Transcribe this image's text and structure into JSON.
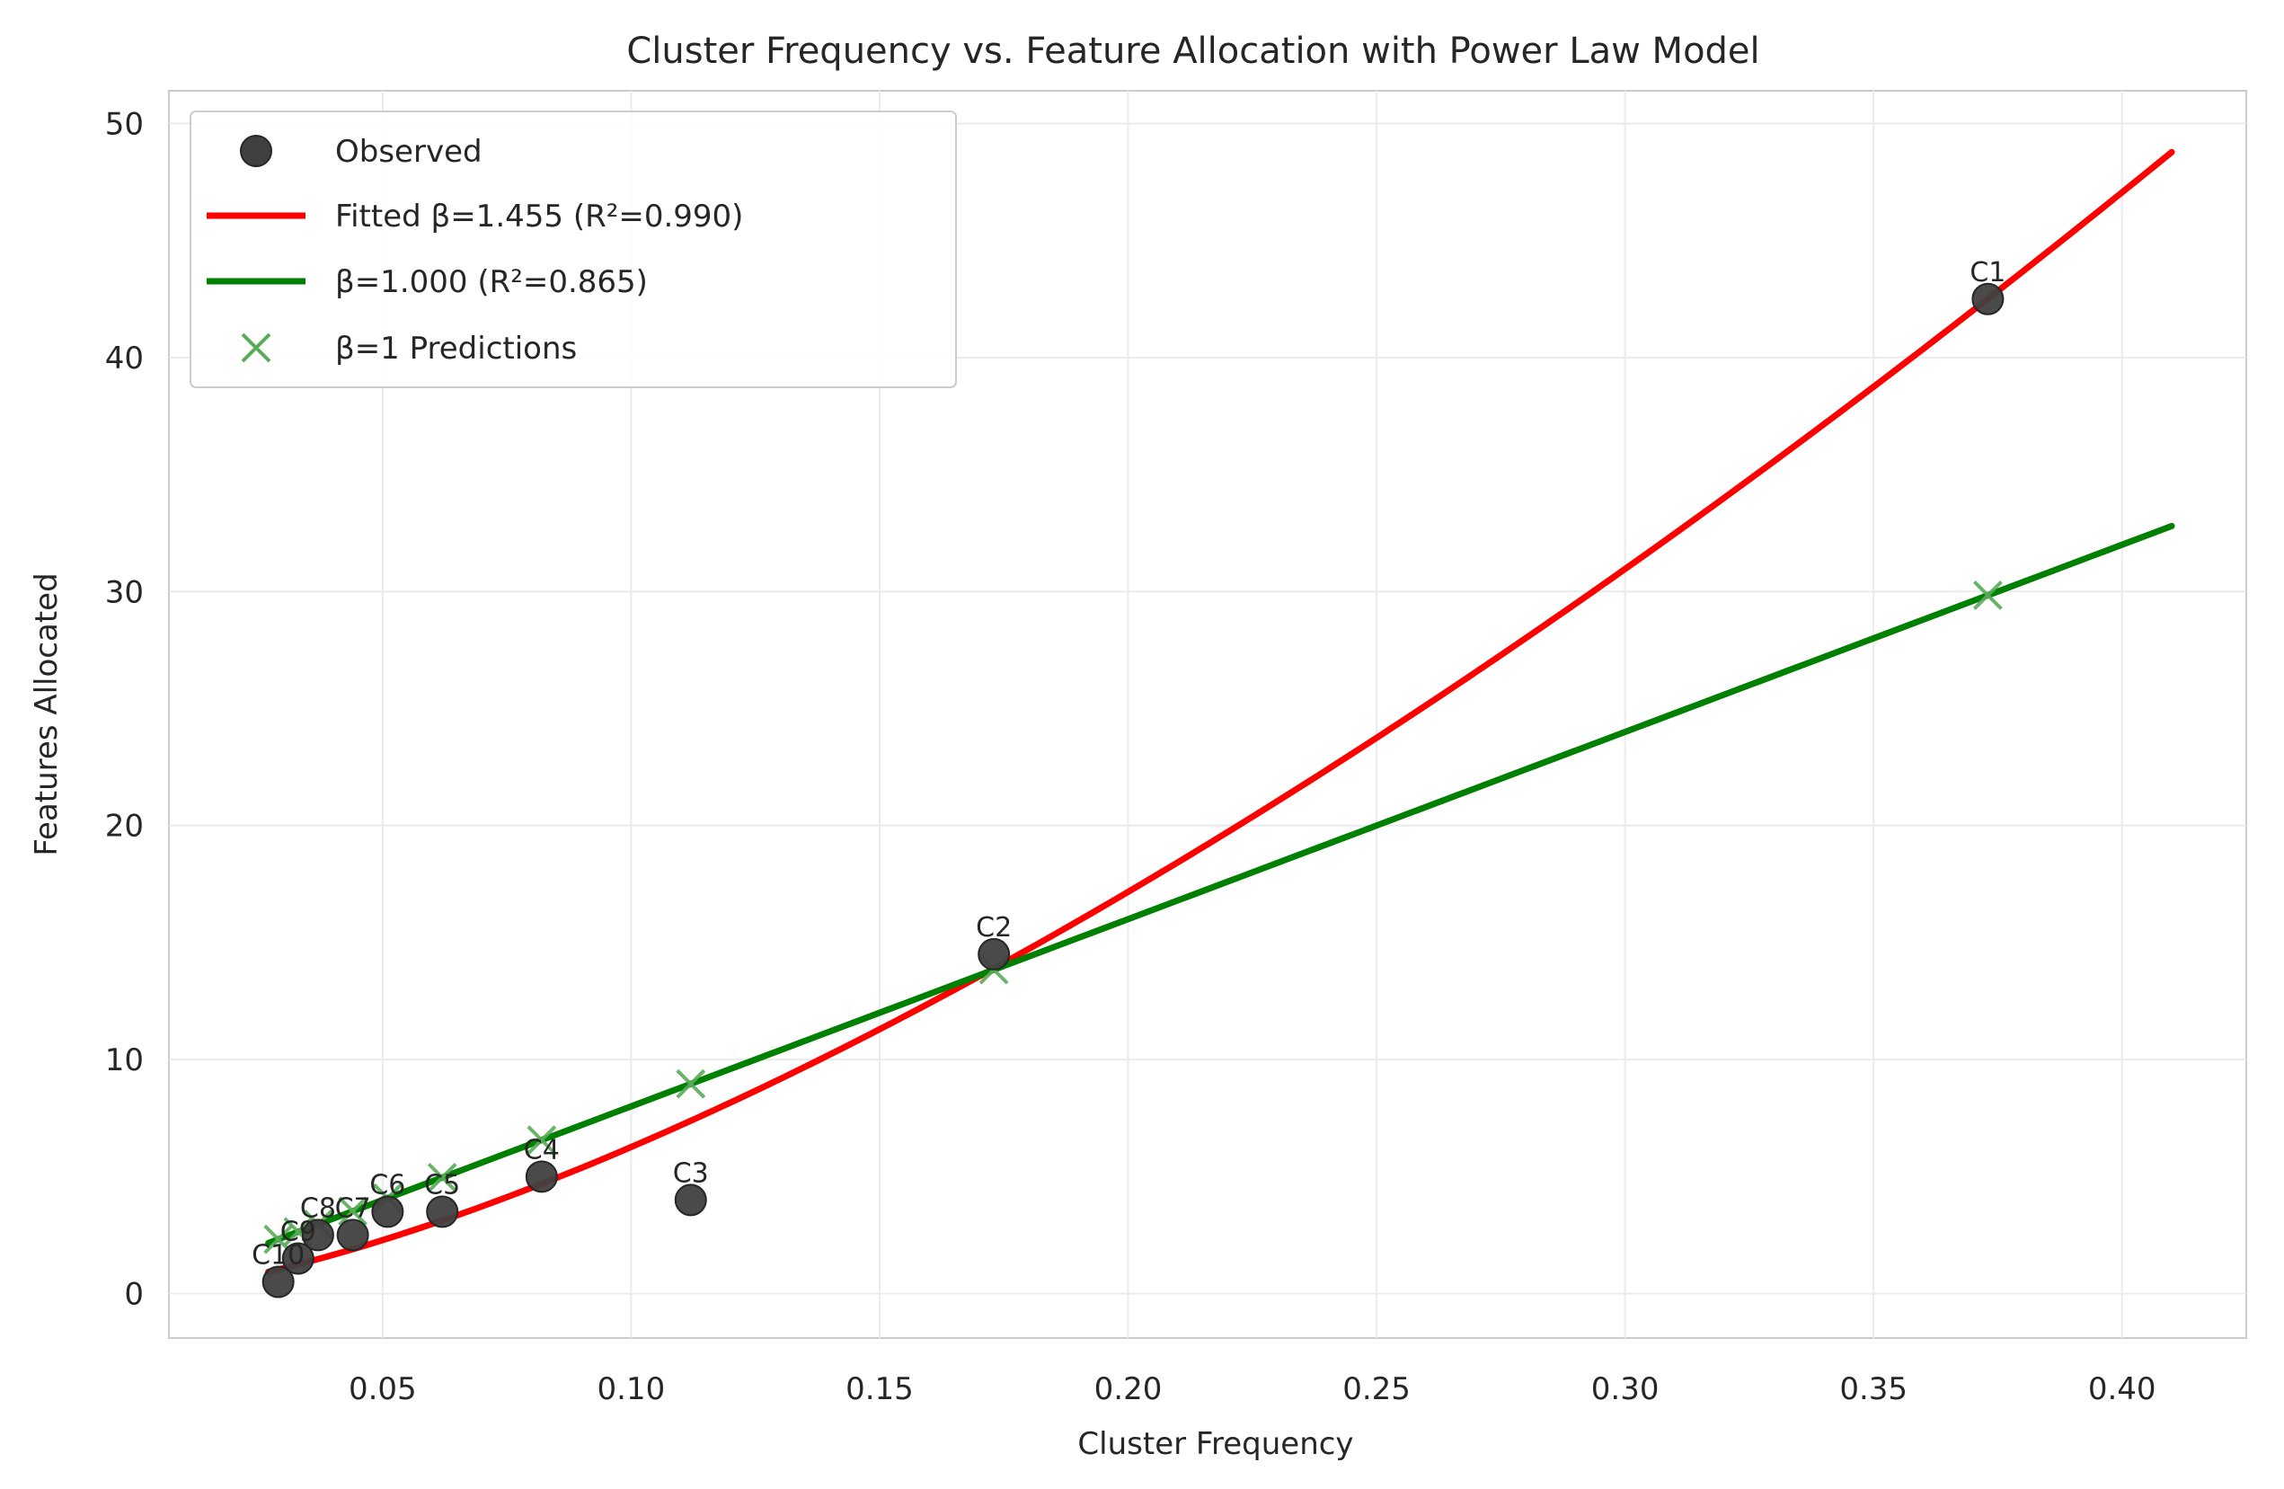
{
  "chart_data": {
    "type": "scatter",
    "title": "Cluster Frequency vs. Feature Allocation with Power Law Model",
    "xlabel": "Cluster Frequency",
    "ylabel": "Features Allocated",
    "xlim": [
      0.007,
      0.425
    ],
    "ylim": [
      -1.9,
      51.4
    ],
    "xticks": [
      0.05,
      0.1,
      0.15,
      0.2,
      0.25,
      0.3,
      0.35,
      0.4
    ],
    "xtick_labels": [
      "0.05",
      "0.10",
      "0.15",
      "0.20",
      "0.25",
      "0.30",
      "0.35",
      "0.40"
    ],
    "yticks": [
      0,
      10,
      20,
      30,
      40,
      50
    ],
    "ytick_labels": [
      "0",
      "10",
      "20",
      "30",
      "40",
      "50"
    ],
    "grid": true,
    "legend_position": "top-left",
    "observed": {
      "name": "Observed",
      "color": "#404040",
      "points": [
        {
          "label": "C1",
          "x": 0.373,
          "y": 42.5
        },
        {
          "label": "C2",
          "x": 0.173,
          "y": 14.5
        },
        {
          "label": "C3",
          "x": 0.112,
          "y": 4.0
        },
        {
          "label": "C4",
          "x": 0.082,
          "y": 5.0
        },
        {
          "label": "C5",
          "x": 0.062,
          "y": 3.5
        },
        {
          "label": "C6",
          "x": 0.051,
          "y": 3.5
        },
        {
          "label": "C7",
          "x": 0.044,
          "y": 2.5
        },
        {
          "label": "C8",
          "x": 0.037,
          "y": 2.5
        },
        {
          "label": "C9",
          "x": 0.033,
          "y": 1.5
        },
        {
          "label": "C10",
          "x": 0.029,
          "y": 0.5
        }
      ]
    },
    "fitted": {
      "name": "Fitted β=1.455 (R²=0.990)",
      "color": "#ff0000",
      "beta": 1.455,
      "coefficient": 178.5,
      "x_range": [
        0.027,
        0.41
      ]
    },
    "linear": {
      "name": "β=1.000 (R²=0.865)",
      "color": "#008000",
      "beta": 1.0,
      "coefficient": 80.0,
      "x_range": [
        0.027,
        0.41
      ]
    },
    "predictions": {
      "name": "β=1 Predictions",
      "color": "#5aab5a",
      "points": [
        {
          "x": 0.373,
          "y": 29.84
        },
        {
          "x": 0.173,
          "y": 13.84
        },
        {
          "x": 0.112,
          "y": 8.96
        },
        {
          "x": 0.082,
          "y": 6.56
        },
        {
          "x": 0.062,
          "y": 4.96
        },
        {
          "x": 0.051,
          "y": 4.08
        },
        {
          "x": 0.044,
          "y": 3.52
        },
        {
          "x": 0.037,
          "y": 2.96
        },
        {
          "x": 0.033,
          "y": 2.64
        },
        {
          "x": 0.029,
          "y": 2.32
        }
      ]
    }
  }
}
